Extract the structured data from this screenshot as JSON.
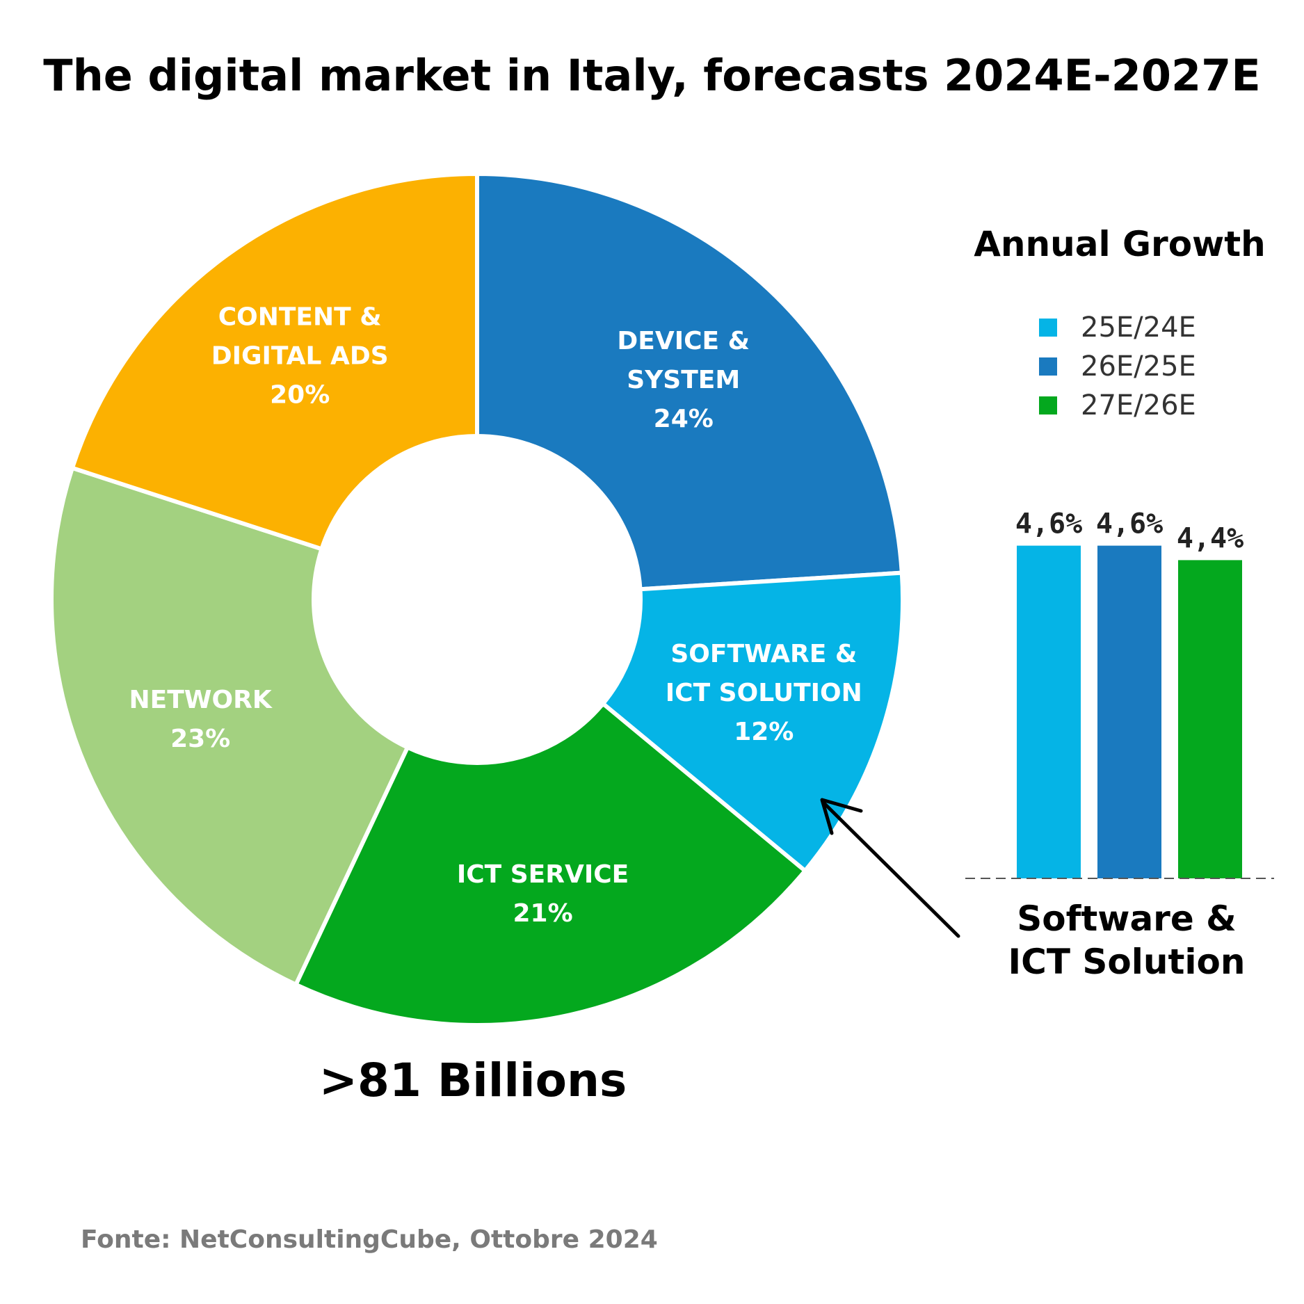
{
  "title": "The digital market in Italy, forecasts 2024E-2027E",
  "total_label": ">81 Billions",
  "source": "Fonte: NetConsultingCube, Ottobre 2024",
  "chart_data": [
    {
      "type": "pie",
      "variant": "donut",
      "slices": [
        {
          "line1": "DEVICE &",
          "line2": "SYSTEM",
          "pct_label": "24%",
          "value": 24,
          "color": "#1a7abf"
        },
        {
          "line1": "SOFTWARE &",
          "line2": "ICT SOLUTION",
          "pct_label": "12%",
          "value": 12,
          "color": "#05b4e6"
        },
        {
          "line1": "ICT SERVICE",
          "line2": "",
          "pct_label": "21%",
          "value": 21,
          "color": "#04a81e"
        },
        {
          "line1": "NETWORK",
          "line2": "",
          "pct_label": "23%",
          "value": 23,
          "color": "#a3d180"
        },
        {
          "line1": "CONTENT &",
          "line2": "DIGITAL ADS",
          "pct_label": "20%",
          "value": 20,
          "color": "#fcb101"
        }
      ]
    },
    {
      "type": "bar",
      "title": "Annual Growth",
      "categories": [
        "25E/24E",
        "26E/25E",
        "27E/26E"
      ],
      "values": [
        4.6,
        4.6,
        4.4
      ],
      "value_labels": [
        "4,6%",
        "4,6%",
        "4,4%"
      ],
      "colors": [
        "#05b4e6",
        "#1a7abf",
        "#04a81e"
      ],
      "xlabel": "Software & ICT Solution",
      "legend": "top"
    }
  ],
  "bar_caption_lines": [
    "Software &",
    "ICT Solution"
  ]
}
